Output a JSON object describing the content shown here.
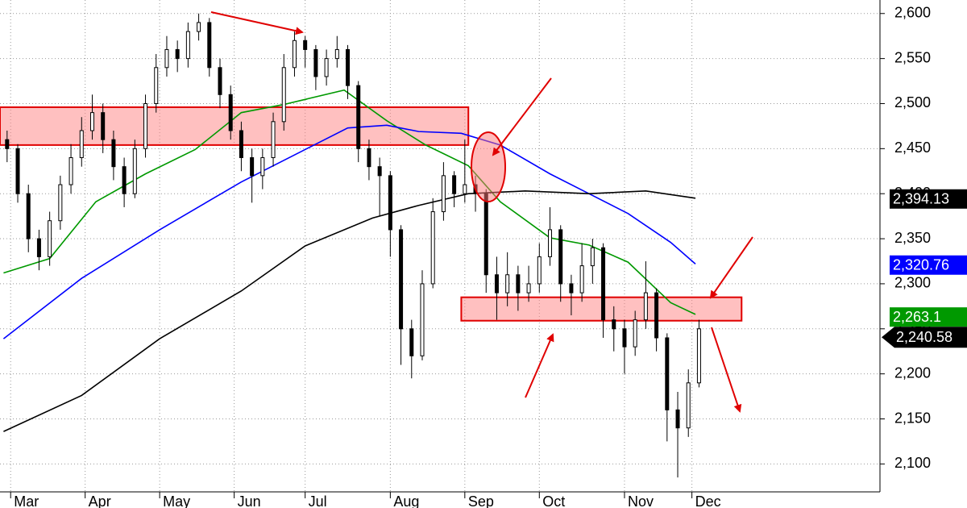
{
  "chart_data": {
    "type": "candlestick",
    "x": [
      0,
      3,
      6,
      9,
      12,
      15,
      18,
      21,
      24,
      27,
      30,
      33,
      36,
      39,
      42,
      45,
      48,
      51,
      54,
      57,
      60,
      63,
      66,
      69,
      72,
      75,
      78,
      81,
      84,
      87,
      90,
      93,
      96,
      99,
      102,
      105,
      108,
      111,
      114,
      117,
      120,
      123,
      126,
      129,
      132,
      135,
      138,
      141,
      144,
      147,
      150,
      153,
      156,
      159,
      162,
      165,
      168,
      171,
      174,
      177,
      180,
      183,
      186,
      189,
      192,
      195
    ],
    "open": [
      2460,
      2450,
      2400,
      2350,
      2330,
      2370,
      2410,
      2440,
      2470,
      2490,
      2460,
      2430,
      2400,
      2450,
      2500,
      2540,
      2560,
      2550,
      2580,
      2590,
      2540,
      2510,
      2470,
      2440,
      2420,
      2440,
      2480,
      2540,
      2570,
      2560,
      2530,
      2550,
      2560,
      2520,
      2450,
      2430,
      2420,
      2360,
      2250,
      2220,
      2300,
      2380,
      2420,
      2400,
      2410,
      2400,
      2310,
      2290,
      2310,
      2290,
      2300,
      2330,
      2360,
      2300,
      2290,
      2320,
      2340,
      2260,
      2250,
      2230,
      2260,
      2290,
      2240,
      2160,
      2140,
      2190
    ],
    "high": [
      2470,
      2455,
      2410,
      2360,
      2380,
      2420,
      2455,
      2485,
      2510,
      2500,
      2470,
      2440,
      2460,
      2510,
      2555,
      2575,
      2570,
      2590,
      2600,
      2595,
      2550,
      2520,
      2480,
      2450,
      2450,
      2490,
      2555,
      2580,
      2575,
      2565,
      2560,
      2575,
      2565,
      2525,
      2460,
      2440,
      2425,
      2365,
      2260,
      2315,
      2395,
      2435,
      2425,
      2460,
      2420,
      2405,
      2330,
      2335,
      2320,
      2320,
      2345,
      2385,
      2365,
      2310,
      2345,
      2350,
      2345,
      2275,
      2260,
      2270,
      2325,
      2295,
      2245,
      2180,
      2205,
      2260
    ],
    "low": [
      2435,
      2390,
      2335,
      2315,
      2320,
      2360,
      2400,
      2430,
      2460,
      2445,
      2415,
      2385,
      2395,
      2440,
      2490,
      2530,
      2535,
      2540,
      2570,
      2530,
      2495,
      2460,
      2425,
      2390,
      2405,
      2430,
      2470,
      2530,
      2540,
      2515,
      2520,
      2540,
      2505,
      2435,
      2415,
      2375,
      2330,
      2210,
      2195,
      2215,
      2295,
      2370,
      2385,
      2390,
      2380,
      2290,
      2260,
      2275,
      2270,
      2280,
      2290,
      2320,
      2280,
      2265,
      2280,
      2300,
      2240,
      2225,
      2200,
      2220,
      2250,
      2225,
      2125,
      2085,
      2130,
      2185
    ],
    "close": [
      2450,
      2400,
      2350,
      2330,
      2370,
      2410,
      2440,
      2470,
      2490,
      2460,
      2430,
      2400,
      2450,
      2500,
      2540,
      2560,
      2550,
      2580,
      2590,
      2540,
      2510,
      2470,
      2440,
      2420,
      2440,
      2480,
      2540,
      2570,
      2560,
      2530,
      2550,
      2560,
      2520,
      2450,
      2430,
      2420,
      2360,
      2250,
      2220,
      2300,
      2380,
      2420,
      2400,
      2410,
      2400,
      2310,
      2290,
      2310,
      2290,
      2300,
      2330,
      2360,
      2300,
      2290,
      2320,
      2340,
      2260,
      2250,
      2230,
      2260,
      2290,
      2240,
      2160,
      2140,
      2190,
      2250
    ],
    "series": [
      {
        "color": "#009900",
        "x": [
          -1,
          12,
          25,
          39,
          53,
          66,
          78,
          95,
          107,
          118,
          130,
          139,
          153,
          164,
          175,
          187,
          194
        ],
        "values": [
          2312,
          2328,
          2391,
          2422,
          2449,
          2490,
          2499,
          2515,
          2481,
          2454,
          2431,
          2391,
          2351,
          2343,
          2324,
          2279,
          2266
        ]
      },
      {
        "color": "#0000ff",
        "x": [
          -1,
          21,
          43,
          66,
          84,
          96,
          107,
          116,
          128,
          139,
          153,
          164,
          175,
          187,
          194
        ],
        "values": [
          2239,
          2306,
          2360,
          2413,
          2449,
          2473,
          2476,
          2469,
          2467,
          2454,
          2422,
          2400,
          2378,
          2346,
          2322
        ]
      },
      {
        "color": "#000000",
        "x": [
          -1,
          21,
          43,
          66,
          84,
          103,
          116,
          130,
          146,
          164,
          180,
          194
        ],
        "values": [
          2136,
          2176,
          2239,
          2292,
          2342,
          2373,
          2387,
          2400,
          2403,
          2400,
          2403,
          2395
        ]
      }
    ],
    "price_labels": [
      {
        "value": 2394.13,
        "label": "2,394.13",
        "color": "#000000"
      },
      {
        "value": 2320.76,
        "label": "2,320.76",
        "color": "#0000ff"
      },
      {
        "value": 2263.1,
        "label": "2,263.1",
        "color": "#009900"
      },
      {
        "value": 2240.58,
        "label": "2,240.58",
        "color": "#000000"
      }
    ],
    "zones": [
      {
        "x": [
          -2,
          130
        ],
        "y": [
          2454,
          2496
        ]
      },
      {
        "x": [
          128,
          207
        ],
        "y": [
          2259,
          2285
        ]
      }
    ],
    "xlim": [
      -2,
      246
    ],
    "ylim": [
      2069,
      2615
    ],
    "xticks": [
      {
        "value": 1,
        "label": "Mar"
      },
      {
        "value": 22,
        "label": "Apr"
      },
      {
        "value": 43,
        "label": "May"
      },
      {
        "value": 64,
        "label": "Jun"
      },
      {
        "value": 84,
        "label": "Jul"
      },
      {
        "value": 108,
        "label": "Aug"
      },
      {
        "value": 129,
        "label": "Sep"
      },
      {
        "value": 150,
        "label": "Oct"
      },
      {
        "value": 174,
        "label": "Nov"
      },
      {
        "value": 193,
        "label": "Dec"
      }
    ],
    "yticks": [
      {
        "value": 2100,
        "label": "2,100"
      },
      {
        "value": 2150,
        "label": "2,150"
      },
      {
        "value": 2200,
        "label": "2,200"
      },
      {
        "value": 2250,
        "label": "2,250"
      },
      {
        "value": 2300,
        "label": "2,300"
      },
      {
        "value": 2350,
        "label": "2,350"
      },
      {
        "value": 2400,
        "label": "2,400"
      },
      {
        "value": 2450,
        "label": "2,450"
      },
      {
        "value": 2500,
        "label": "2,500"
      },
      {
        "value": 2550,
        "label": "2,550"
      },
      {
        "value": 2600,
        "label": "2,600"
      }
    ],
    "grid": true
  }
}
